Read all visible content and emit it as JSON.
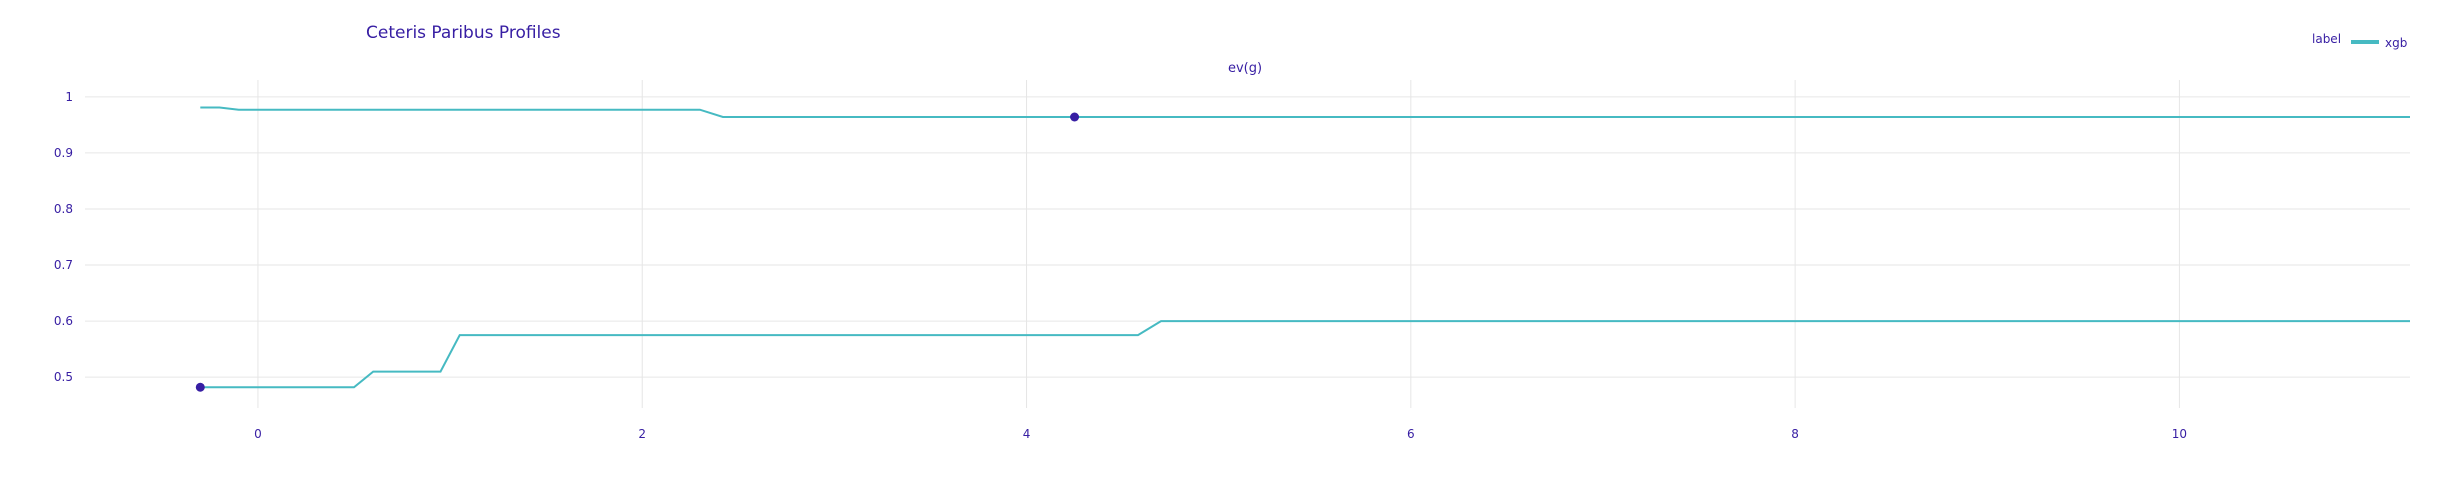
{
  "chart_data": {
    "type": "line",
    "title": "Ceteris Paribus Profiles",
    "subtitle": "ev(g)",
    "legend": {
      "title": "label",
      "entries": [
        {
          "name": "xgb",
          "color": "#46bac2"
        }
      ],
      "placement": "top-right"
    },
    "xlim": [
      -0.9,
      11.2
    ],
    "ylim": [
      0.445,
      1.03
    ],
    "x_ticks": [
      0,
      2,
      4,
      6,
      8,
      10
    ],
    "y_ticks": [
      0.5,
      0.6,
      0.7,
      0.8,
      0.9,
      1
    ],
    "x_tick_labels": [
      "0",
      "2",
      "4",
      "6",
      "8",
      "10"
    ],
    "y_tick_labels": [
      "0.5",
      "0.6",
      "0.7",
      "0.8",
      "0.9",
      "1"
    ],
    "grid": true,
    "colors": {
      "line": "#46bac2",
      "point": "#371ea3",
      "text": "#371ea3",
      "grid": "#e6e6e6"
    },
    "series": [
      {
        "name": "xgb",
        "x": [
          -0.3,
          -0.2,
          -0.1,
          2.3,
          2.42,
          11.2
        ],
        "y": [
          0.981,
          0.981,
          0.977,
          0.977,
          0.964,
          0.964
        ],
        "observation": {
          "x": 4.25,
          "y": 0.964
        }
      },
      {
        "name": "xgb",
        "x": [
          -0.3,
          0.5,
          0.6,
          0.95,
          1.05,
          4.58,
          4.7,
          11.2
        ],
        "y": [
          0.482,
          0.482,
          0.51,
          0.51,
          0.575,
          0.575,
          0.6,
          0.6
        ],
        "observation": {
          "x": -0.3,
          "y": 0.482
        }
      }
    ]
  }
}
